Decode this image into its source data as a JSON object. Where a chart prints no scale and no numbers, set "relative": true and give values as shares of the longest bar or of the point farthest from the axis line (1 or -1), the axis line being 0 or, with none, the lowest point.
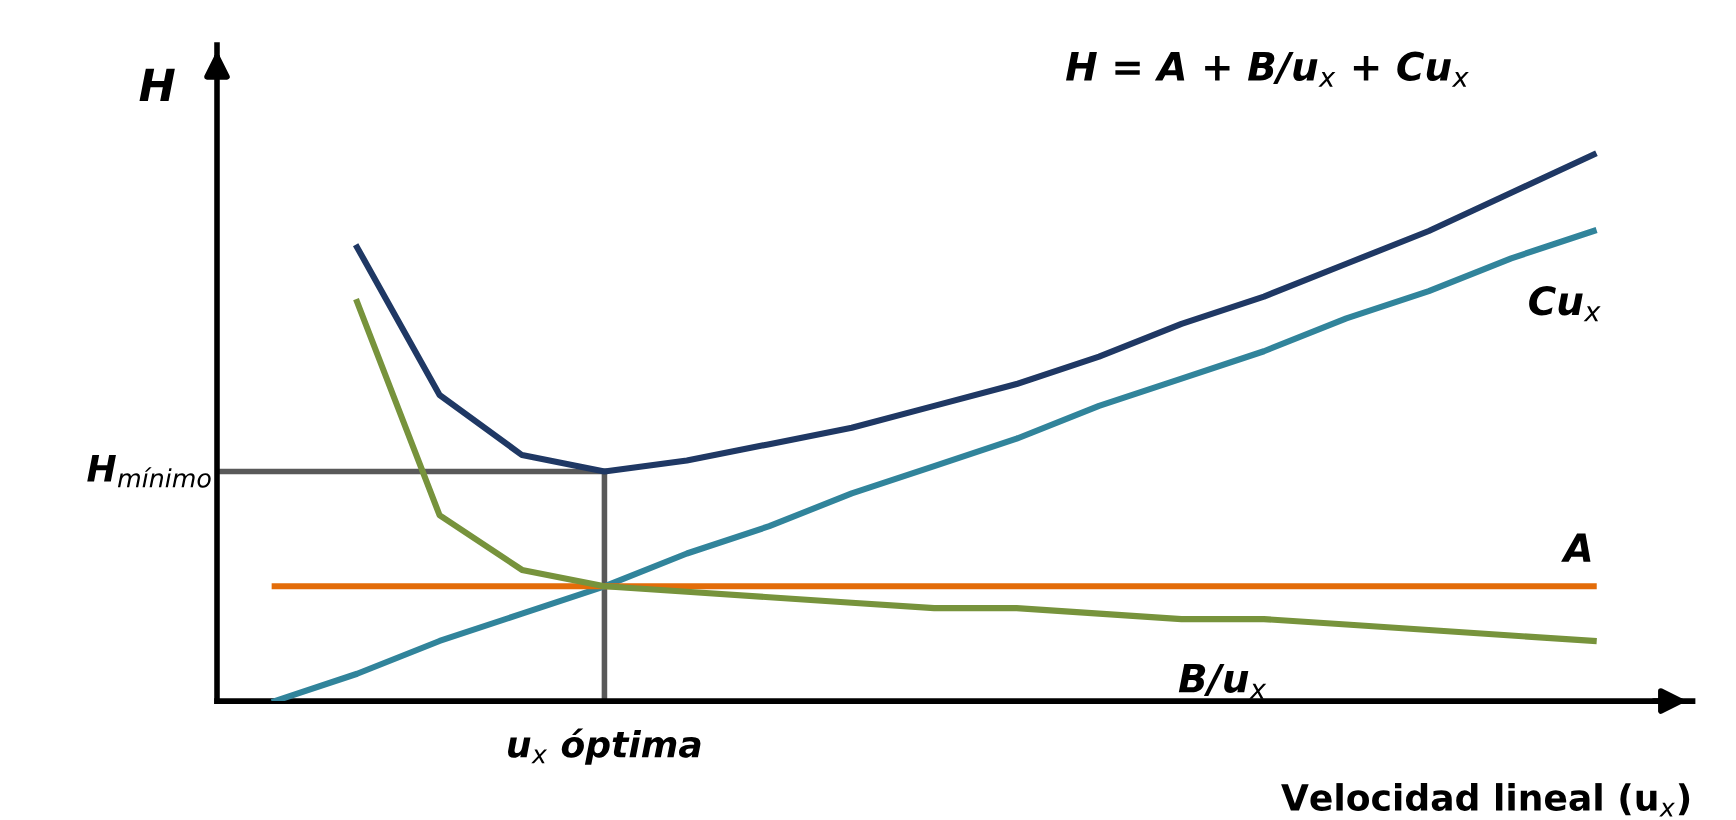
{
  "chart_data": {
    "type": "line",
    "relative": true,
    "ylabel": "H",
    "xlabel": "Velocidad lineal (u$_{x}$)",
    "categories": [
      null,
      null,
      null,
      null,
      null,
      null,
      null,
      null,
      null,
      null,
      null,
      null,
      null,
      null,
      null,
      null,
      null
    ],
    "series": [
      {
        "name": "H = A + B/u$_{x}$ + Cu$_{x}$",
        "color": "#1f3864",
        "values": [
          null,
          0.83,
          0.56,
          0.45,
          0.42,
          0.44,
          0.47,
          0.5,
          0.54,
          0.58,
          0.63,
          0.69,
          0.74,
          0.8,
          0.86,
          0.93,
          1
        ]
      },
      {
        "name": "Cu$_{x}$",
        "color": "#31849b",
        "values": [
          0,
          0.05,
          0.11,
          0.16,
          0.21,
          0.27,
          0.32,
          0.38,
          0.43,
          0.48,
          0.54,
          0.59,
          0.64,
          0.7,
          0.75,
          0.81,
          0.86
        ]
      },
      {
        "name": "A",
        "color": "#e36c09",
        "values": [
          0.21,
          0.21,
          0.21,
          0.21,
          0.21,
          0.21,
          0.21,
          0.21,
          0.21,
          0.21,
          0.21,
          0.21,
          0.21,
          0.21,
          0.21,
          0.21,
          0.21
        ]
      },
      {
        "name": "B/u$_{x}$",
        "color": "#77933c",
        "values": [
          null,
          0.73,
          0.34,
          0.24,
          0.21,
          0.2,
          0.19,
          0.18,
          0.17,
          0.17,
          0.16,
          0.15,
          0.15,
          0.14,
          0.13,
          0.12,
          0.11
        ]
      }
    ],
    "ref_lines": [
      {
        "axis": "y",
        "value": 0.42,
        "label": "H$_{mínimo}$",
        "color": "#595959"
      }
    ],
    "annotations": [
      "u$_{x}$ óptima"
    ],
    "legend": false,
    "marker": "none",
    "line_style": "solid"
  }
}
